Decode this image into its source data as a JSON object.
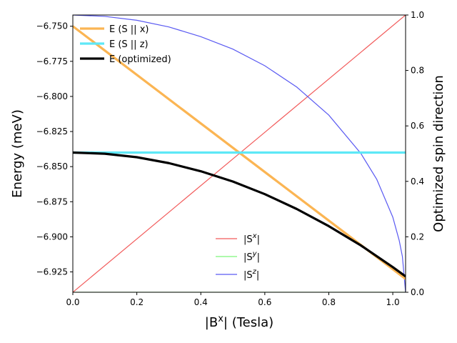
{
  "chart_data": {
    "type": "line",
    "xlabel_prefix": "|B",
    "xlabel_sup": "x",
    "xlabel_suffix": "| (Tesla)",
    "ylabel_left": "Energy (meV)",
    "ylabel_right": "Optimized spin direction",
    "xlim": [
      0,
      1.04
    ],
    "ylim_left": [
      -6.9395,
      -6.742
    ],
    "ylim_right": [
      0,
      1
    ],
    "xticks": [
      0.0,
      0.2,
      0.4,
      0.6,
      0.8,
      1.0
    ],
    "xtick_labels": [
      "0.0",
      "0.2",
      "0.4",
      "0.6",
      "0.8",
      "1.0"
    ],
    "yticks_left": [
      -6.75,
      -6.775,
      -6.8,
      -6.825,
      -6.85,
      -6.875,
      -6.9,
      -6.925
    ],
    "ytick_labels_left": [
      "−6.750",
      "−6.775",
      "−6.800",
      "−6.825",
      "−6.850",
      "−6.875",
      "−6.900",
      "−6.925"
    ],
    "yticks_right": [
      0,
      0.2,
      0.4,
      0.6,
      0.8,
      1.0
    ],
    "ytick_labels_right": [
      "0.0",
      "0.2",
      "0.4",
      "0.6",
      "0.8",
      "1.0"
    ],
    "energy_series": [
      {
        "name": "E (S || x)",
        "color": "#fbb553",
        "axis": "left",
        "x": [
          0,
          1.04
        ],
        "y": [
          -6.75,
          -6.93
        ]
      },
      {
        "name": "E (S || z)",
        "color": "#5ee8f7",
        "axis": "left",
        "x": [
          0,
          1.04
        ],
        "y": [
          -6.84,
          -6.84
        ]
      },
      {
        "name": "E (optimized)",
        "color": "#000000",
        "axis": "left",
        "x": [
          0,
          0.1,
          0.2,
          0.3,
          0.4,
          0.5,
          0.6,
          0.7,
          0.8,
          0.9,
          1.0,
          1.04
        ],
        "y": [
          -6.84,
          -6.8408,
          -6.8433,
          -6.8475,
          -6.8533,
          -6.8606,
          -6.8696,
          -6.8802,
          -6.8924,
          -6.9061,
          -6.9216,
          -6.9282
        ]
      }
    ],
    "spin_series": [
      {
        "name": "S^x",
        "color": "#f25a5a",
        "axis": "right",
        "x": [
          0,
          1.04
        ],
        "y": [
          0,
          1
        ]
      },
      {
        "name": "S^y",
        "color": "#7df57a",
        "axis": "right",
        "x": [
          0,
          1.04
        ],
        "y": [
          0,
          0
        ]
      },
      {
        "name": "S^z",
        "color": "#5a5af2",
        "axis": "right",
        "x": [
          0,
          0.1,
          0.2,
          0.3,
          0.4,
          0.5,
          0.6,
          0.7,
          0.8,
          0.9,
          0.95,
          1.0,
          1.02,
          1.03,
          1.04
        ],
        "y": [
          1.0,
          0.995,
          0.981,
          0.957,
          0.922,
          0.877,
          0.817,
          0.74,
          0.639,
          0.501,
          0.407,
          0.271,
          0.187,
          0.129,
          0.0
        ]
      }
    ],
    "spin_legend": [
      {
        "base": "|S",
        "sup": "x",
        "tail": "|",
        "color": "#f25a5a"
      },
      {
        "base": "|S",
        "sup": "y",
        "tail": "|",
        "color": "#7df57a"
      },
      {
        "base": "|S",
        "sup": "z",
        "tail": "|",
        "color": "#5a5af2"
      }
    ],
    "legend_upper": "top-left",
    "legend_lower": "lower-center",
    "grid": false
  }
}
